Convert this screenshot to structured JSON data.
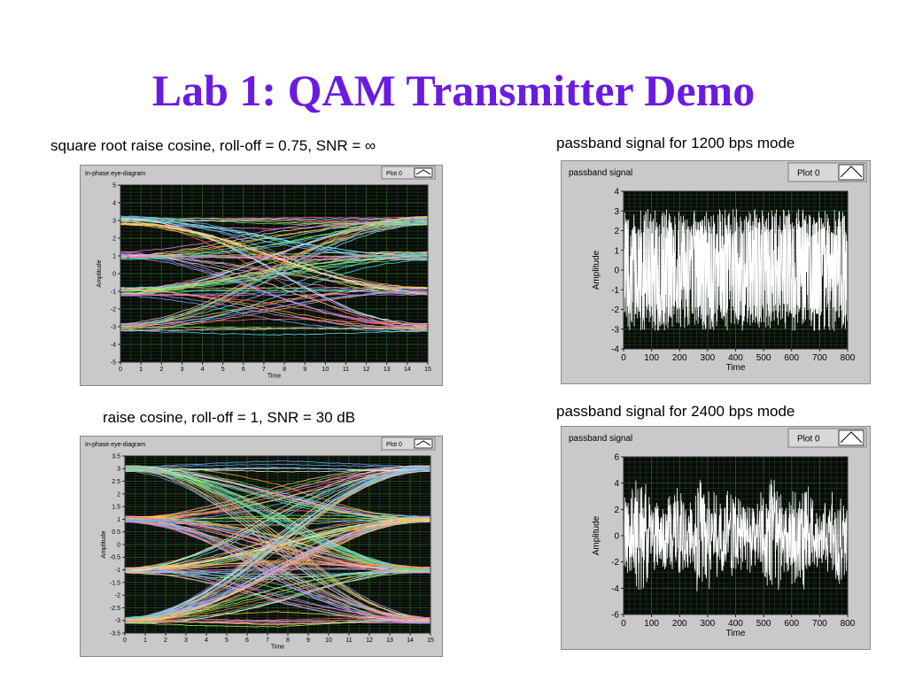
{
  "colors": {
    "title": "#6a1be0",
    "panel_bg": "#c9c9c9",
    "plot_bg": "#0a0a0a",
    "grid": "#1f5a1f",
    "signal": "#ffffff"
  },
  "slide": {
    "title": "Lab 1: QAM Transmitter Demo"
  },
  "captions": {
    "eye1": "square root raise cosine, roll-off = 0.75, SNR = ∞",
    "eye2": "raise cosine, roll-off = 1, SNR = 30 dB",
    "pb1": "passband signal for 1200 bps mode",
    "pb2": "passband signal for 2400 bps mode"
  },
  "chart_data": [
    {
      "id": "eye1",
      "type": "line",
      "title": "In-phase eye-diagram",
      "legend": "Plot 0",
      "xlabel": "Time",
      "ylabel": "Amplitude",
      "xlim": [
        0,
        15
      ],
      "ylim": [
        -5,
        5
      ],
      "xticks": [
        0,
        1,
        2,
        3,
        4,
        5,
        6,
        7,
        8,
        9,
        10,
        11,
        12,
        13,
        14,
        15
      ],
      "yticks": [
        -5,
        -4,
        -3,
        -2,
        -1,
        0,
        1,
        2,
        3,
        4,
        5
      ],
      "levels": [
        -3,
        -1,
        1,
        3
      ],
      "symbol_times": [
        0,
        15
      ],
      "crossing_time": 7.5,
      "noise": 0.25
    },
    {
      "id": "eye2",
      "type": "line",
      "title": "In-phase eye-diagram",
      "legend": "Plot 0",
      "xlabel": "Time",
      "ylabel": "Amplitude",
      "xlim": [
        0,
        15
      ],
      "ylim": [
        -3.5,
        3.5
      ],
      "xticks": [
        0,
        1,
        2,
        3,
        4,
        5,
        6,
        7,
        8,
        9,
        10,
        11,
        12,
        13,
        14,
        15
      ],
      "yticks": [
        -3.5,
        -3,
        -2.5,
        -2,
        -1.5,
        -1,
        -0.5,
        0,
        0.5,
        1,
        1.5,
        2,
        2.5,
        3,
        3.5
      ],
      "levels": [
        -3,
        -1,
        1,
        3
      ],
      "symbol_times": [
        0,
        15
      ],
      "crossing_time": 7.5,
      "noise": 0.12
    },
    {
      "id": "pb1",
      "type": "line",
      "title": "passband signal",
      "legend": "Plot 0",
      "xlabel": "Time",
      "ylabel": "Amplitude",
      "xlim": [
        0,
        800
      ],
      "ylim": [
        -4,
        4
      ],
      "xticks": [
        0,
        100,
        200,
        300,
        400,
        500,
        600,
        700,
        800
      ],
      "yticks": [
        -4,
        -3,
        -2,
        -1,
        0,
        1,
        2,
        3,
        4
      ],
      "amplitude_range": [
        -3.1,
        3.1
      ],
      "samples": 800
    },
    {
      "id": "pb2",
      "type": "line",
      "title": "passband signal",
      "legend": "Plot 0",
      "xlabel": "Time",
      "ylabel": "Amplitude",
      "xlim": [
        0,
        800
      ],
      "ylim": [
        -6,
        6
      ],
      "xticks": [
        0,
        100,
        200,
        300,
        400,
        500,
        600,
        700,
        800
      ],
      "yticks": [
        -6,
        -4,
        -2,
        0,
        2,
        4,
        6
      ],
      "amplitude_range": [
        -4.4,
        4.3
      ],
      "samples": 800
    }
  ]
}
